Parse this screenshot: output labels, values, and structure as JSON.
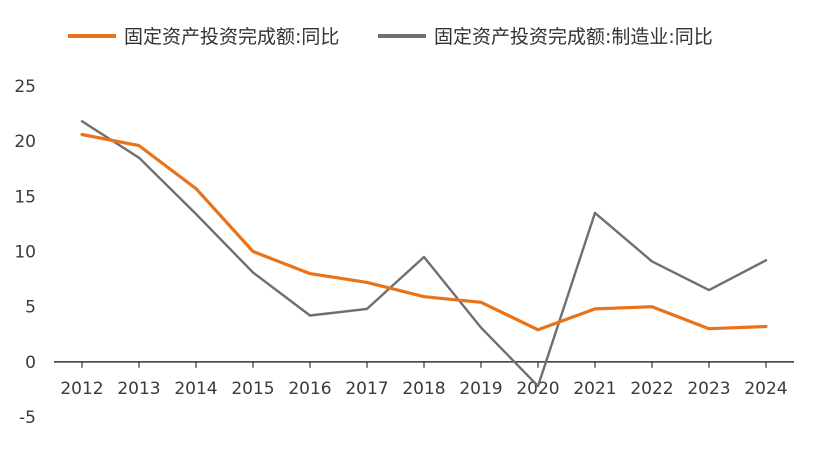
{
  "chart_data": {
    "type": "line",
    "title": "",
    "xlabel": "",
    "ylabel": "",
    "x": [
      "2012",
      "2013",
      "2014",
      "2015",
      "2016",
      "2017",
      "2018",
      "2019",
      "2020",
      "2021",
      "2022",
      "2023",
      "2024"
    ],
    "ylim": [
      -5,
      25
    ],
    "yticks": [
      "-5",
      "0",
      "5",
      "10",
      "15",
      "20",
      "25"
    ],
    "grid": false,
    "legend_position": "top",
    "series": [
      {
        "name": "固定资产投资完成额:同比",
        "color": "#E8731A",
        "values": [
          20.6,
          19.6,
          15.7,
          10.0,
          8.0,
          7.2,
          5.9,
          5.4,
          2.9,
          4.8,
          5.0,
          3.0,
          3.2
        ]
      },
      {
        "name": "固定资产投资完成额:制造业:同比",
        "color": "#6E6E76",
        "values": [
          21.8,
          18.5,
          13.4,
          8.1,
          4.2,
          4.8,
          9.5,
          3.1,
          -2.2,
          13.5,
          9.1,
          6.5,
          9.2
        ]
      }
    ]
  }
}
